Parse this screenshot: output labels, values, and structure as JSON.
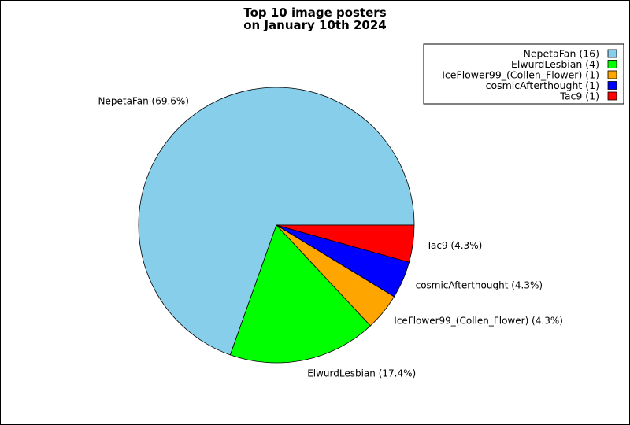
{
  "chart_data": {
    "type": "pie",
    "title_lines": [
      "Top 10 image posters",
      "on January 10th 2024"
    ],
    "slices": [
      {
        "name": "NepetaFan",
        "count": 16,
        "percent": 69.6,
        "label": "NepetaFan (69.6%)",
        "legend": "NepetaFan (16)",
        "color": "#87ceeb"
      },
      {
        "name": "ElwurdLesbian",
        "count": 4,
        "percent": 17.4,
        "label": "ElwurdLesbian (17.4%)",
        "legend": "ElwurdLesbian (4)",
        "color": "#00ff00"
      },
      {
        "name": "IceFlower99_(Collen_Flower)",
        "count": 1,
        "percent": 4.3,
        "label": "IceFlower99_(Collen_Flower) (4.3%)",
        "legend": "IceFlower99_(Collen_Flower) (1)",
        "color": "#ffa500"
      },
      {
        "name": "cosmicAfterthought",
        "count": 1,
        "percent": 4.3,
        "label": "cosmicAfterthought (4.3%)",
        "legend": "cosmicAfterthought (1)",
        "color": "#0000ff"
      },
      {
        "name": "Tac9",
        "count": 1,
        "percent": 4.3,
        "label": "Tac9 (4.3%)",
        "legend": "Tac9 (1)",
        "color": "#ff0000"
      }
    ],
    "legend_position": "top-right"
  }
}
